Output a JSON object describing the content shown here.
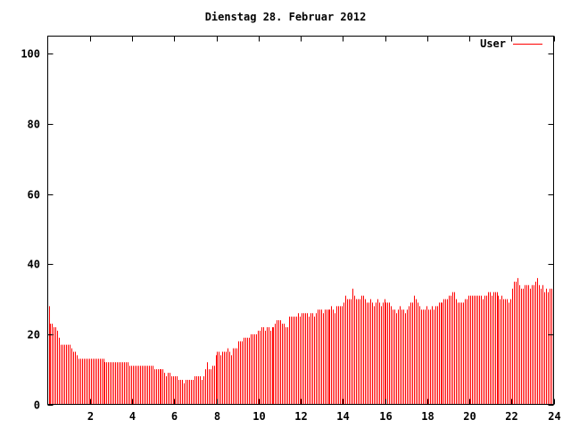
{
  "chart_data": {
    "type": "bar",
    "title": "Dienstag 28. Februar 2012",
    "xlabel": "",
    "ylabel": "",
    "xlim": [
      0,
      24
    ],
    "ylim": [
      0,
      105
    ],
    "x_interval_hours": 0.0833333,
    "x_ticks": [
      "2",
      "4",
      "6",
      "8",
      "10",
      "12",
      "14",
      "16",
      "18",
      "20",
      "22",
      "24"
    ],
    "y_ticks": [
      "0",
      "20",
      "40",
      "60",
      "80",
      "100"
    ],
    "grid": false,
    "legend": {
      "position": "top-right",
      "entries": [
        {
          "label": "User",
          "color": "#ff0000"
        }
      ]
    },
    "series": [
      {
        "name": "User",
        "color": "#ff0000",
        "values": [
          28,
          23,
          23,
          22,
          22,
          21,
          19,
          17,
          17,
          17,
          17,
          17,
          17,
          16,
          15,
          15,
          14,
          13,
          13,
          13,
          13,
          13,
          13,
          13,
          13,
          13,
          13,
          13,
          13,
          13,
          13,
          13,
          12,
          12,
          12,
          12,
          12,
          12,
          12,
          12,
          12,
          12,
          12,
          12,
          12,
          12,
          11,
          11,
          11,
          11,
          11,
          11,
          11,
          11,
          11,
          11,
          11,
          11,
          11,
          11,
          10,
          10,
          10,
          10,
          10,
          10,
          9,
          8,
          9,
          9,
          8,
          8,
          8,
          8,
          7,
          7,
          7,
          6,
          7,
          7,
          7,
          7,
          7,
          8,
          8,
          8,
          8,
          7,
          8,
          10,
          12,
          10,
          10,
          11,
          11,
          14,
          15,
          15,
          14,
          15,
          15,
          15,
          16,
          15,
          14,
          16,
          16,
          16,
          18,
          18,
          18,
          19,
          19,
          19,
          19,
          20,
          20,
          20,
          20,
          21,
          21,
          22,
          22,
          21,
          22,
          22,
          21,
          22,
          22,
          23,
          24,
          24,
          24,
          23,
          23,
          22,
          22,
          25,
          25,
          25,
          25,
          25,
          26,
          25,
          26,
          26,
          26,
          26,
          25,
          26,
          26,
          25,
          26,
          27,
          27,
          27,
          26,
          27,
          27,
          27,
          27,
          28,
          27,
          26,
          28,
          28,
          28,
          28,
          29,
          31,
          30,
          30,
          30,
          33,
          31,
          30,
          30,
          30,
          31,
          31,
          30,
          29,
          29,
          30,
          29,
          28,
          29,
          30,
          29,
          28,
          29,
          30,
          29,
          29,
          29,
          28,
          27,
          27,
          26,
          27,
          28,
          27,
          27,
          26,
          27,
          28,
          29,
          29,
          31,
          30,
          29,
          28,
          27,
          27,
          27,
          28,
          27,
          27,
          28,
          27,
          28,
          28,
          29,
          29,
          29,
          30,
          30,
          30,
          31,
          31,
          32,
          32,
          30,
          29,
          29,
          29,
          29,
          30,
          30,
          31,
          31,
          31,
          31,
          31,
          31,
          31,
          31,
          30,
          31,
          31,
          32,
          32,
          31,
          32,
          32,
          32,
          31,
          30,
          31,
          30,
          30,
          30,
          29,
          30,
          33,
          35,
          35,
          36,
          34,
          33,
          33,
          34,
          34,
          34,
          33,
          34,
          34,
          35,
          36,
          34,
          33,
          34,
          32,
          33,
          32,
          33,
          33,
          31
        ]
      }
    ]
  }
}
